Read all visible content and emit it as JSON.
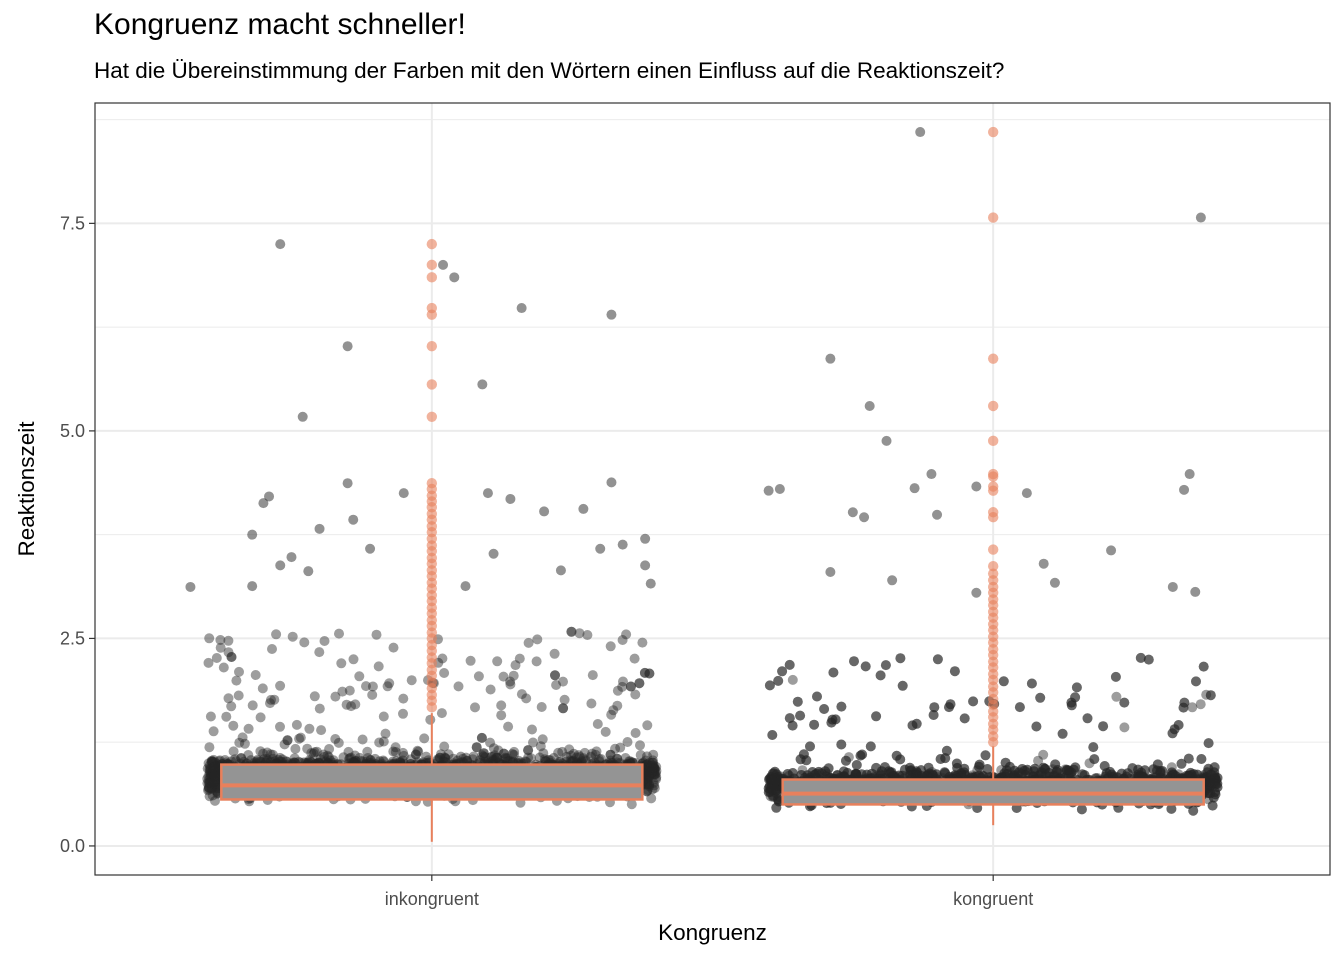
{
  "chart_data": {
    "type": "boxplot",
    "title": "Kongruenz macht schneller!",
    "subtitle": "Hat die Übereinstimmung der Farben mit den Wörtern einen Einfluss auf die Reaktionszeit?",
    "xlabel": "Kongruenz",
    "ylabel": "Reaktionszeit",
    "categories": [
      "inkongruent",
      "kongruent"
    ],
    "y_ticks": [
      0.0,
      2.5,
      5.0,
      7.5
    ],
    "y_tick_labels": [
      "0.0",
      "2.5",
      "5.0",
      "7.5"
    ],
    "ylim": [
      -0.35,
      8.95
    ],
    "grid": true,
    "boxes": [
      {
        "category": "inkongruent",
        "min": 0.05,
        "q1": 0.56,
        "median": 0.73,
        "q3": 0.98,
        "whisker_high": 1.6
      },
      {
        "category": "kongruent",
        "min": 0.25,
        "q1": 0.5,
        "median": 0.63,
        "q3": 0.8,
        "whisker_high": 1.2
      }
    ],
    "outliers": [
      {
        "category": "inkongruent",
        "values": [
          7.25,
          7.0,
          6.85,
          6.48,
          6.4,
          6.02,
          5.56,
          5.17,
          4.37,
          4.3,
          4.22,
          4.15,
          4.08,
          4.0,
          3.93,
          3.85,
          3.78,
          3.7,
          3.62,
          3.55,
          3.47,
          3.4,
          3.32,
          3.25,
          3.17,
          3.1,
          3.02,
          2.95,
          2.87,
          2.8,
          2.72,
          2.65,
          2.57,
          2.5,
          2.42,
          2.35,
          2.27,
          2.2,
          2.12,
          2.05,
          1.97,
          1.9,
          1.82,
          1.75,
          1.67
        ]
      },
      {
        "category": "kongruent",
        "values": [
          8.6,
          7.57,
          5.87,
          5.3,
          4.88,
          4.48,
          4.45,
          4.33,
          4.28,
          4.02,
          3.96,
          3.57,
          3.37,
          3.28,
          3.2,
          3.12,
          3.05,
          2.97,
          2.9,
          2.82,
          2.75,
          2.67,
          2.6,
          2.52,
          2.45,
          2.37,
          2.3,
          2.22,
          2.15,
          2.07,
          2.0,
          1.92,
          1.85,
          1.77,
          1.7,
          1.62,
          1.55,
          1.47,
          1.4,
          1.32,
          1.25
        ]
      }
    ],
    "jitter_highlights": [
      {
        "category": "inkongruent",
        "offset": -0.27,
        "value": 7.25
      },
      {
        "category": "inkongruent",
        "offset": 0.02,
        "value": 7.0
      },
      {
        "category": "inkongruent",
        "offset": 0.04,
        "value": 6.85
      },
      {
        "category": "inkongruent",
        "offset": 0.16,
        "value": 6.48
      },
      {
        "category": "inkongruent",
        "offset": 0.32,
        "value": 6.4
      },
      {
        "category": "inkongruent",
        "offset": -0.15,
        "value": 6.02
      },
      {
        "category": "inkongruent",
        "offset": 0.09,
        "value": 5.56
      },
      {
        "category": "inkongruent",
        "offset": -0.23,
        "value": 5.17
      },
      {
        "category": "inkongruent",
        "offset": -0.15,
        "value": 4.37
      },
      {
        "category": "inkongruent",
        "offset": 0.32,
        "value": 4.38
      },
      {
        "category": "inkongruent",
        "offset": -0.29,
        "value": 4.21
      },
      {
        "category": "inkongruent",
        "offset": -0.3,
        "value": 4.13
      },
      {
        "category": "inkongruent",
        "offset": 0.1,
        "value": 4.25
      },
      {
        "category": "inkongruent",
        "offset": 0.14,
        "value": 4.18
      },
      {
        "category": "inkongruent",
        "offset": 0.2,
        "value": 4.03
      },
      {
        "category": "inkongruent",
        "offset": 0.27,
        "value": 4.06
      },
      {
        "category": "inkongruent",
        "offset": -0.05,
        "value": 4.25
      },
      {
        "category": "inkongruent",
        "offset": -0.14,
        "value": 3.93
      },
      {
        "category": "inkongruent",
        "offset": -0.2,
        "value": 3.82
      },
      {
        "category": "inkongruent",
        "offset": -0.32,
        "value": 3.75
      },
      {
        "category": "inkongruent",
        "offset": 0.38,
        "value": 3.7
      },
      {
        "category": "inkongruent",
        "offset": 0.34,
        "value": 3.63
      },
      {
        "category": "inkongruent",
        "offset": -0.11,
        "value": 3.58
      },
      {
        "category": "inkongruent",
        "offset": 0.11,
        "value": 3.52
      },
      {
        "category": "inkongruent",
        "offset": 0.3,
        "value": 3.58
      },
      {
        "category": "inkongruent",
        "offset": -0.25,
        "value": 3.48
      },
      {
        "category": "inkongruent",
        "offset": -0.27,
        "value": 3.38
      },
      {
        "category": "inkongruent",
        "offset": 0.38,
        "value": 3.38
      },
      {
        "category": "inkongruent",
        "offset": -0.22,
        "value": 3.31
      },
      {
        "category": "inkongruent",
        "offset": 0.23,
        "value": 3.32
      },
      {
        "category": "inkongruent",
        "offset": -0.43,
        "value": 3.12
      },
      {
        "category": "inkongruent",
        "offset": -0.32,
        "value": 3.13
      },
      {
        "category": "inkongruent",
        "offset": 0.06,
        "value": 3.13
      },
      {
        "category": "inkongruent",
        "offset": 0.39,
        "value": 3.16
      },
      {
        "category": "kongruent",
        "offset": -0.13,
        "value": 8.6
      },
      {
        "category": "kongruent",
        "offset": 0.37,
        "value": 7.57
      },
      {
        "category": "kongruent",
        "offset": -0.29,
        "value": 5.87
      },
      {
        "category": "kongruent",
        "offset": -0.22,
        "value": 5.3
      },
      {
        "category": "kongruent",
        "offset": -0.19,
        "value": 4.88
      },
      {
        "category": "kongruent",
        "offset": -0.11,
        "value": 4.48
      },
      {
        "category": "kongruent",
        "offset": 0.35,
        "value": 4.48
      },
      {
        "category": "kongruent",
        "offset": -0.14,
        "value": 4.31
      },
      {
        "category": "kongruent",
        "offset": -0.03,
        "value": 4.33
      },
      {
        "category": "kongruent",
        "offset": 0.34,
        "value": 4.29
      },
      {
        "category": "kongruent",
        "offset": 0.06,
        "value": 4.25
      },
      {
        "category": "kongruent",
        "offset": -0.4,
        "value": 4.28
      },
      {
        "category": "kongruent",
        "offset": -0.25,
        "value": 4.02
      },
      {
        "category": "kongruent",
        "offset": -0.23,
        "value": 3.96
      },
      {
        "category": "kongruent",
        "offset": -0.1,
        "value": 3.99
      },
      {
        "category": "kongruent",
        "offset": 0.21,
        "value": 3.56
      },
      {
        "category": "kongruent",
        "offset": 0.09,
        "value": 3.4
      },
      {
        "category": "kongruent",
        "offset": -0.29,
        "value": 3.3
      },
      {
        "category": "kongruent",
        "offset": 0.11,
        "value": 3.17
      },
      {
        "category": "kongruent",
        "offset": -0.18,
        "value": 3.2
      },
      {
        "category": "kongruent",
        "offset": 0.32,
        "value": 3.12
      },
      {
        "category": "kongruent",
        "offset": 0.36,
        "value": 3.06
      },
      {
        "category": "kongruent",
        "offset": -0.03,
        "value": 3.05
      },
      {
        "category": "kongruent",
        "offset": -0.38,
        "value": 4.3
      }
    ]
  },
  "colors": {
    "box_fill": "#949494",
    "box_stroke": "#e8805c",
    "outlier": "#e8805c",
    "points": "#262626",
    "grid": "#ebebeb",
    "panel_border": "#333333",
    "tick_text": "#4d4d4d"
  }
}
